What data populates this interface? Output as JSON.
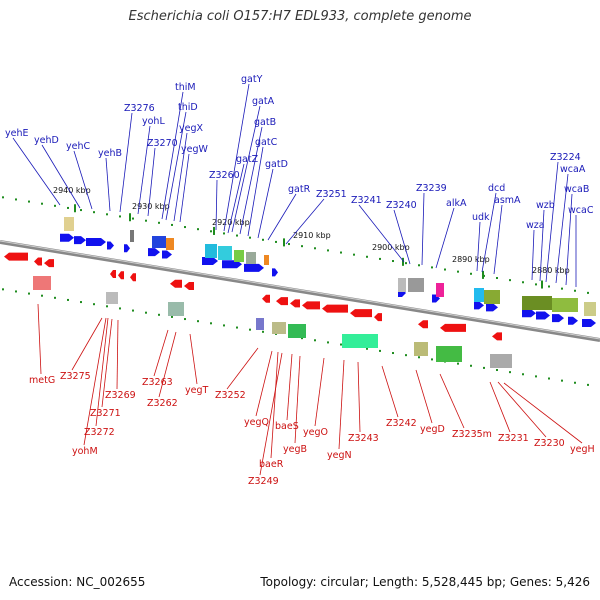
{
  "header": {
    "title": "Escherichia coli O157:H7 EDL933, complete genome"
  },
  "footer": {
    "accession": "Accession: NC_002655",
    "topology": "Topology: circular; Length: 5,528,445 bp; Genes: 5,426"
  },
  "colors": {
    "forward_gene": "#1111ee",
    "reverse_gene": "#ee1111",
    "backbone": "#888888",
    "tick": "#1e8c1e",
    "top_label": "#1a1ab8",
    "bottom_label": "#cc1111"
  },
  "ticks": [
    "2940 kbp",
    "2930 kbp",
    "2920 kbp",
    "2910 kbp",
    "2900 kbp",
    "2890 kbp",
    "2880 kbp"
  ],
  "top_genes": [
    "yehE",
    "yehD",
    "yehC",
    "yehB",
    "Z3276",
    "yohL",
    "Z3270",
    "thiM",
    "thiD",
    "yegX",
    "yegW",
    "Z3260",
    "gatY",
    "gatA",
    "gatB",
    "gatZ",
    "gatC",
    "gatD",
    "gatR",
    "Z3251",
    "Z3241",
    "Z3240",
    "Z3239",
    "alkA",
    "dcd",
    "udk",
    "asmA",
    "wza",
    "wzb",
    "Z3224",
    "wcaA",
    "wcaB",
    "wcaC"
  ],
  "bottom_genes": [
    "metG",
    "Z3275",
    "Z3269",
    "Z3271",
    "Z3272",
    "yohM",
    "Z3263",
    "Z3262",
    "yegT",
    "Z3252",
    "yegQ",
    "baeR",
    "Z3249",
    "baeS",
    "yegB",
    "yegO",
    "yegN",
    "Z3243",
    "Z3242",
    "yegD",
    "Z3235m",
    "Z3231",
    "Z3230",
    "yegH"
  ]
}
